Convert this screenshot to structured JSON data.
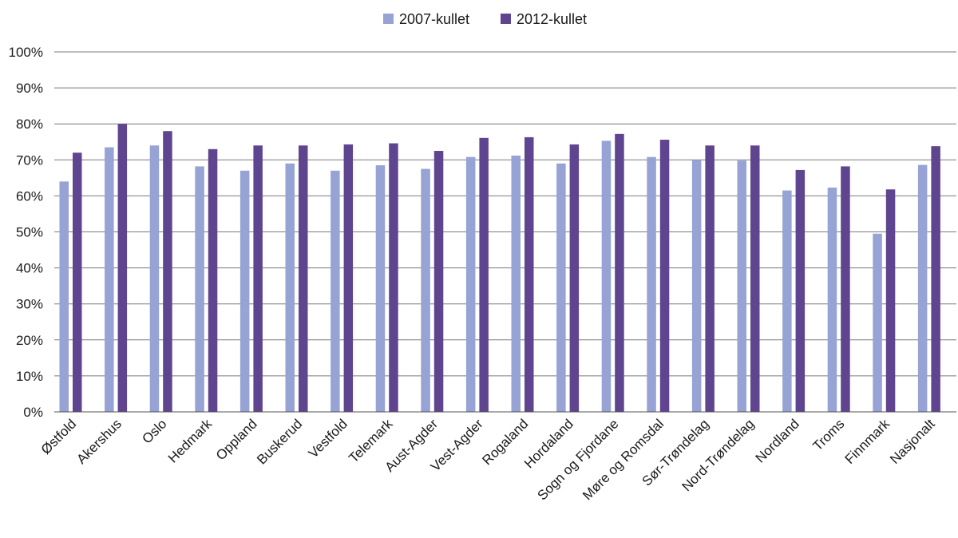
{
  "chart_data": {
    "type": "bar",
    "title": "",
    "xlabel": "",
    "ylabel": "",
    "ylim": [
      0,
      100
    ],
    "yticks": [
      "0%",
      "10%",
      "20%",
      "30%",
      "40%",
      "50%",
      "60%",
      "70%",
      "80%",
      "90%",
      "100%"
    ],
    "grid": true,
    "legend_position": "top-center",
    "categories": [
      "Østfold",
      "Akershus",
      "Oslo",
      "Hedmark",
      "Oppland",
      "Buskerud",
      "Vestfold",
      "Telemark",
      "Aust-Agder",
      "Vest-Agder",
      "Rogaland",
      "Hordaland",
      "Sogn og Fjordane",
      "Møre og Romsdal",
      "Sør-Trøndelag",
      "Nord-Trøndelag",
      "Nordland",
      "Troms",
      "Finnmark",
      "Nasjonalt"
    ],
    "series": [
      {
        "name": "2007-kullet",
        "color": "#96a3d4",
        "values": [
          64.0,
          73.5,
          74.0,
          68.2,
          67.0,
          69.0,
          67.0,
          68.5,
          67.5,
          70.8,
          71.2,
          69.0,
          75.3,
          70.8,
          70.0,
          69.8,
          61.5,
          62.3,
          49.5,
          68.6
        ]
      },
      {
        "name": "2012-kullet",
        "color": "#5f4590",
        "values": [
          72.0,
          80.0,
          78.0,
          73.0,
          74.0,
          74.0,
          74.3,
          74.6,
          72.5,
          76.1,
          76.3,
          74.3,
          77.2,
          75.6,
          74.0,
          74.0,
          67.2,
          68.2,
          61.8,
          73.8
        ]
      }
    ]
  }
}
